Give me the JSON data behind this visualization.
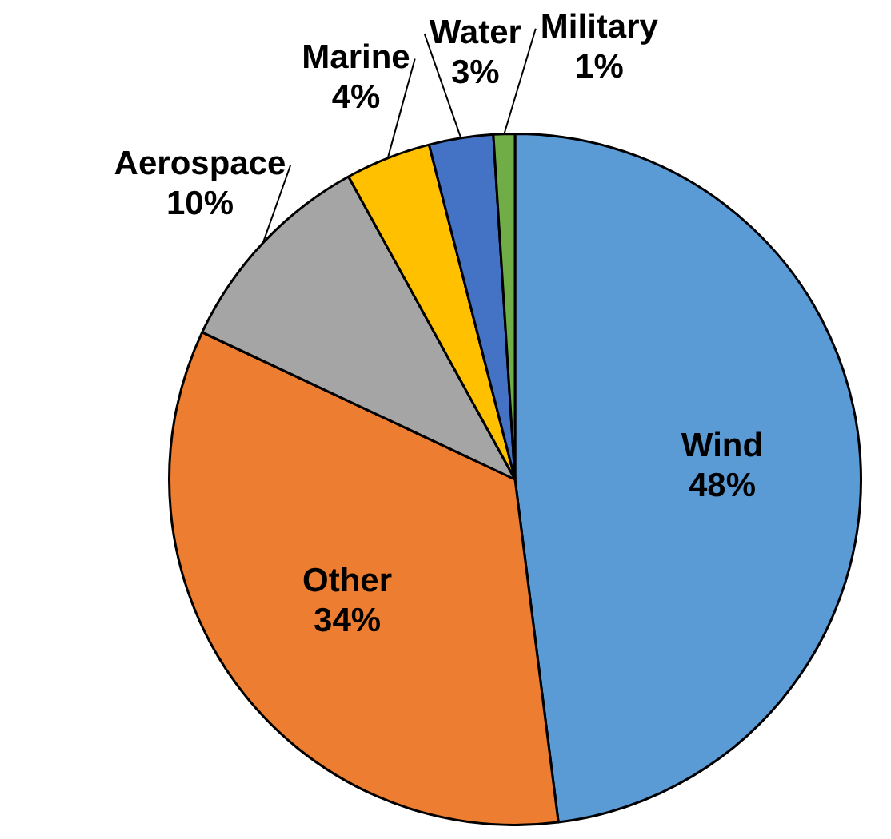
{
  "chart_data": {
    "type": "pie",
    "categories": [
      "Wind",
      "Other",
      "Aerospace",
      "Marine",
      "Water",
      "Military"
    ],
    "values": [
      48,
      34,
      10,
      4,
      3,
      1
    ],
    "value_labels": [
      "48%",
      "34%",
      "10%",
      "4%",
      "3%",
      "1%"
    ],
    "colors": [
      "#5b9bd5",
      "#ed7d31",
      "#a5a5a5",
      "#ffc000",
      "#4472c4",
      "#70ad47"
    ]
  }
}
